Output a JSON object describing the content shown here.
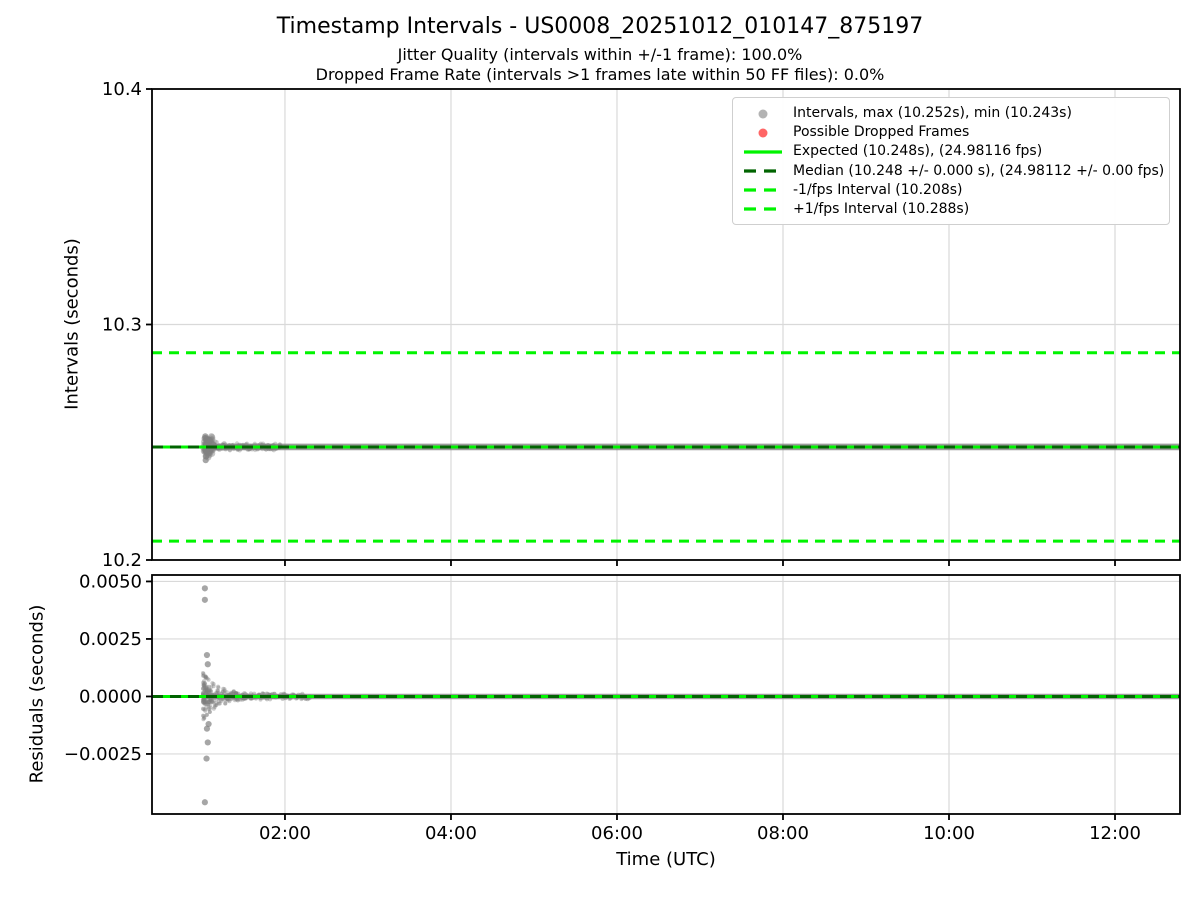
{
  "colors": {
    "scatter": "#808080",
    "dropped": "#ff0000",
    "expected": "#00f400",
    "median": "#006400",
    "fps_interval": "#00f400",
    "grid": "#d9d9d9",
    "spine": "#000000",
    "text": "#000000",
    "legend_border": "#cfcfcf"
  },
  "chart_data": [
    {
      "type": "scatter",
      "title": "Timestamp Intervals - US0008_20251012_010147_875197",
      "subtitle1": "Jitter Quality (intervals within +/-1 frame): 100.0%",
      "subtitle2": "Dropped Frame Rate (intervals >1 frames late within 50 FF files): 0.0%",
      "ylabel": "Intervals (seconds)",
      "xlabel": "",
      "ylim": [
        10.2,
        10.4
      ],
      "yticks": {
        "values": [
          10.2,
          10.3,
          10.4
        ],
        "labels": [
          "10.2",
          "10.3",
          "10.4"
        ]
      },
      "xlim_hours": [
        0.398,
        12.783
      ],
      "xticks": {
        "hours": [
          2,
          4,
          6,
          8,
          10,
          12
        ],
        "labels": [
          "02:00",
          "04:00",
          "06:00",
          "08:00",
          "10:00",
          "12:00"
        ],
        "show_labels": false
      },
      "grid": true,
      "legend_position": "upper right",
      "lines": [
        {
          "name": "plus-1fps-interval",
          "value": 10.288,
          "style": "dashed",
          "color_key": "fps_interval",
          "width": 3
        },
        {
          "name": "minus-1fps-interval",
          "value": 10.208,
          "style": "dashed",
          "color_key": "fps_interval",
          "width": 3
        },
        {
          "name": "expected",
          "value": 10.248,
          "style": "solid",
          "color_key": "expected",
          "width": 3
        },
        {
          "name": "median",
          "value": 10.248,
          "style": "dashed",
          "color_key": "median",
          "width": 3
        }
      ],
      "scatter": {
        "start_hour": 1.012,
        "end_hour": 12.783,
        "center_seconds": 10.248,
        "band_half_seconds": 0.00135,
        "max_seconds": 10.252,
        "min_seconds": 10.243,
        "start_cluster": {
          "hour_center": 1.08,
          "hour_sigma": 0.03,
          "sigma_seconds": 0.0018,
          "n": 60
        },
        "taper": {
          "end_hour": 1.95,
          "half0_seconds": 0.0028,
          "decay_hours": 0.13,
          "n": 220
        },
        "outliers": [
          [
            1.04,
            10.2525
          ],
          [
            1.04,
            10.2518
          ],
          [
            1.05,
            10.244
          ],
          [
            1.045,
            10.2424
          ]
        ]
      },
      "legend": [
        {
          "marker": "dot",
          "color_key": "scatter",
          "alpha": 0.6,
          "label": "Intervals, max (10.252s), min (10.243s)"
        },
        {
          "marker": "dot",
          "color_key": "dropped",
          "alpha": 0.6,
          "label": "Possible Dropped Frames"
        },
        {
          "marker": "line-solid",
          "color_key": "expected",
          "alpha": 1,
          "label": "Expected (10.248s), (24.98116 fps)"
        },
        {
          "marker": "line-dashed",
          "color_key": "median",
          "alpha": 1,
          "label": "Median (10.248 +/- 0.000 s), (24.98112 +/- 0.00 fps)"
        },
        {
          "marker": "line-dashed",
          "color_key": "fps_interval",
          "alpha": 1,
          "label": "-1/fps Interval (10.208s)"
        },
        {
          "marker": "line-dashed",
          "color_key": "fps_interval",
          "alpha": 1,
          "label": "+1/fps Interval (10.288s)"
        }
      ]
    },
    {
      "type": "scatter",
      "title": "",
      "ylabel": "Residuals (seconds)",
      "xlabel": "Time (UTC)",
      "ylim": [
        -0.00511,
        0.00528
      ],
      "yticks": {
        "values": [
          -0.0025,
          0.0,
          0.0025,
          0.005
        ],
        "labels": [
          "−0.0025",
          "0.0000",
          "0.0025",
          "0.0050"
        ]
      },
      "xlim_hours": [
        0.398,
        12.783
      ],
      "xticks": {
        "hours": [
          2,
          4,
          6,
          8,
          10,
          12
        ],
        "labels": [
          "02:00",
          "04:00",
          "06:00",
          "08:00",
          "10:00",
          "12:00"
        ],
        "show_labels": true
      },
      "grid": true,
      "lines": [
        {
          "name": "expected",
          "value": 0.0,
          "style": "solid",
          "color_key": "expected",
          "width": 3
        },
        {
          "name": "median",
          "value": 0.0,
          "style": "dashed",
          "color_key": "median",
          "width": 3
        }
      ],
      "scatter": {
        "start_hour": 1.012,
        "end_hour": 12.783,
        "center_seconds": 0.0,
        "band_half_seconds": 0.00012,
        "trumpet": {
          "end_hour": 2.3,
          "half0_seconds": 0.0009,
          "decay_hours": 0.17,
          "n": 380
        },
        "outliers": [
          [
            1.035,
            0.0047
          ],
          [
            1.035,
            0.0042
          ],
          [
            1.06,
            0.0018
          ],
          [
            1.07,
            0.0014
          ],
          [
            1.08,
            -0.0012
          ],
          [
            1.06,
            -0.0014
          ],
          [
            1.07,
            -0.002
          ],
          [
            1.055,
            -0.0027
          ],
          [
            1.035,
            -0.0046
          ]
        ]
      }
    }
  ]
}
